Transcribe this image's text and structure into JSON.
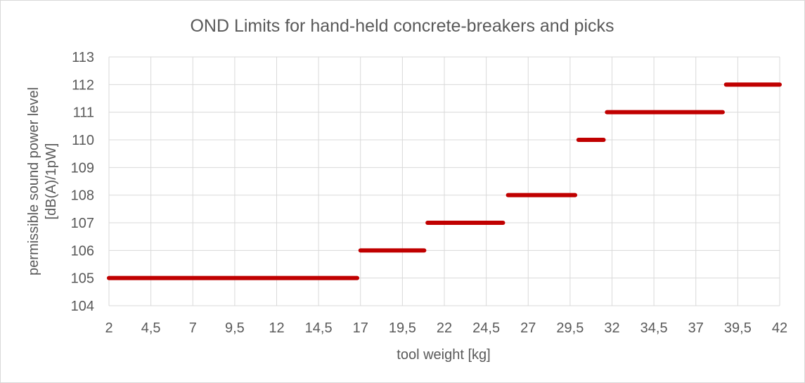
{
  "chart_data": {
    "type": "line",
    "title": "OND Limits for hand-held concrete-breakers and picks",
    "xlabel": "tool weight [kg]",
    "ylabel_lines": [
      "permissible sound power level",
      "[dB(A)/1pW]"
    ],
    "x_ticks": [
      "2",
      "4,5",
      "7",
      "9,5",
      "12",
      "14,5",
      "17",
      "19,5",
      "22",
      "24,5",
      "27",
      "29,5",
      "32",
      "34,5",
      "37",
      "39,5",
      "42"
    ],
    "y_ticks": [
      "104",
      "105",
      "106",
      "107",
      "108",
      "109",
      "110",
      "111",
      "112",
      "113"
    ],
    "xlim": [
      2,
      42
    ],
    "ylim": [
      104,
      113
    ],
    "grid": true,
    "series_color": "#c00000",
    "segments": [
      {
        "x": [
          2,
          16.8
        ],
        "y": 105
      },
      {
        "x": [
          17,
          20.8
        ],
        "y": 106
      },
      {
        "x": [
          21,
          25.5
        ],
        "y": 107
      },
      {
        "x": [
          25.8,
          29.8
        ],
        "y": 108
      },
      {
        "x": [
          30,
          31.5
        ],
        "y": 110
      },
      {
        "x": [
          31.7,
          38.6
        ],
        "y": 111
      },
      {
        "x": [
          38.8,
          42
        ],
        "y": 112
      }
    ]
  }
}
